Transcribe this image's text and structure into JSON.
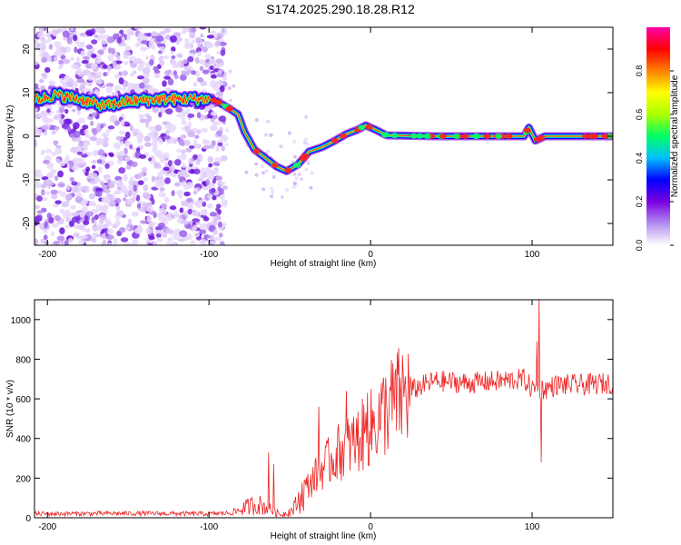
{
  "title": "S174.2025.290.18.28.R12",
  "chart_data": [
    {
      "type": "heatmap",
      "xlabel": "Height of straight line (km)",
      "ylabel": "Frequency (Hz)",
      "xlim": [
        -208,
        150
      ],
      "ylim": [
        -25,
        25
      ],
      "xticks": [
        -200,
        -100,
        0,
        100
      ],
      "yticks": [
        -20,
        -10,
        0,
        10,
        20
      ],
      "colorbar": {
        "label": "Normalized spectral amplitude",
        "ticks": [
          "0.0",
          "0.2",
          "0.4",
          "0.6",
          "0.8"
        ],
        "range": [
          0,
          1
        ],
        "colors": [
          "#ffffff",
          "#b38cf0",
          "#7a00e0",
          "#0000ff",
          "#00bfff",
          "#00ff66",
          "#aaff00",
          "#ffff00",
          "#ff8000",
          "#ff0000",
          "#ff00aa"
        ]
      },
      "ridge": [
        {
          "x": -205,
          "f": 8.5
        },
        {
          "x": -195,
          "f": 9.5
        },
        {
          "x": -180,
          "f": 8.5
        },
        {
          "x": -165,
          "f": 7
        },
        {
          "x": -150,
          "f": 8
        },
        {
          "x": -130,
          "f": 8.5
        },
        {
          "x": -100,
          "f": 8.5
        },
        {
          "x": -95,
          "f": 8
        },
        {
          "x": -88,
          "f": 6.5
        },
        {
          "x": -82,
          "f": 5
        },
        {
          "x": -78,
          "f": 1
        },
        {
          "x": -72,
          "f": -3
        },
        {
          "x": -65,
          "f": -5
        },
        {
          "x": -58,
          "f": -7
        },
        {
          "x": -52,
          "f": -8
        },
        {
          "x": -45,
          "f": -6.5
        },
        {
          "x": -38,
          "f": -3.5
        },
        {
          "x": -30,
          "f": -2.5
        },
        {
          "x": -22,
          "f": -1
        },
        {
          "x": -15,
          "f": 0.5
        },
        {
          "x": -8,
          "f": 1.5
        },
        {
          "x": -3,
          "f": 2.5
        },
        {
          "x": 3,
          "f": 1.5
        },
        {
          "x": 10,
          "f": 0.2
        },
        {
          "x": 40,
          "f": 0
        },
        {
          "x": 95,
          "f": 0
        },
        {
          "x": 98,
          "f": 2
        },
        {
          "x": 102,
          "f": -1
        },
        {
          "x": 108,
          "f": 0
        },
        {
          "x": 150,
          "f": 0
        }
      ]
    },
    {
      "type": "line",
      "xlabel": "Height of straight line (km)",
      "ylabel": "SNR (10 * v/v)",
      "xlim": [
        -208,
        150
      ],
      "ylim": [
        0,
        1100
      ],
      "xticks": [
        -200,
        -100,
        0,
        100
      ],
      "yticks": [
        0,
        200,
        400,
        600,
        800,
        1000
      ],
      "color": "#ee2222",
      "envelope": [
        {
          "x": -208,
          "y": 20
        },
        {
          "x": -150,
          "y": 22
        },
        {
          "x": -100,
          "y": 20
        },
        {
          "x": -85,
          "y": 25
        },
        {
          "x": -78,
          "y": 50
        },
        {
          "x": -70,
          "y": 70
        },
        {
          "x": -62,
          "y": 40
        },
        {
          "x": -55,
          "y": 15
        },
        {
          "x": -48,
          "y": 40
        },
        {
          "x": -40,
          "y": 150
        },
        {
          "x": -30,
          "y": 250
        },
        {
          "x": -20,
          "y": 330
        },
        {
          "x": -10,
          "y": 380
        },
        {
          "x": 0,
          "y": 450
        },
        {
          "x": 10,
          "y": 550
        },
        {
          "x": 20,
          "y": 620
        },
        {
          "x": 30,
          "y": 660
        },
        {
          "x": 40,
          "y": 690
        },
        {
          "x": 60,
          "y": 680
        },
        {
          "x": 80,
          "y": 690
        },
        {
          "x": 95,
          "y": 700
        },
        {
          "x": 100,
          "y": 650
        },
        {
          "x": 108,
          "y": 650
        },
        {
          "x": 115,
          "y": 670
        },
        {
          "x": 130,
          "y": 670
        },
        {
          "x": 150,
          "y": 680
        }
      ],
      "spikes": [
        {
          "x": -63,
          "y": 330
        },
        {
          "x": -60,
          "y": 270
        },
        {
          "x": -32,
          "y": 560
        },
        {
          "x": -15,
          "y": 640
        },
        {
          "x": -2,
          "y": 630
        },
        {
          "x": 103,
          "y": 890
        },
        {
          "x": 104.5,
          "y": 1100
        },
        {
          "x": 105.5,
          "y": 280
        }
      ]
    }
  ]
}
